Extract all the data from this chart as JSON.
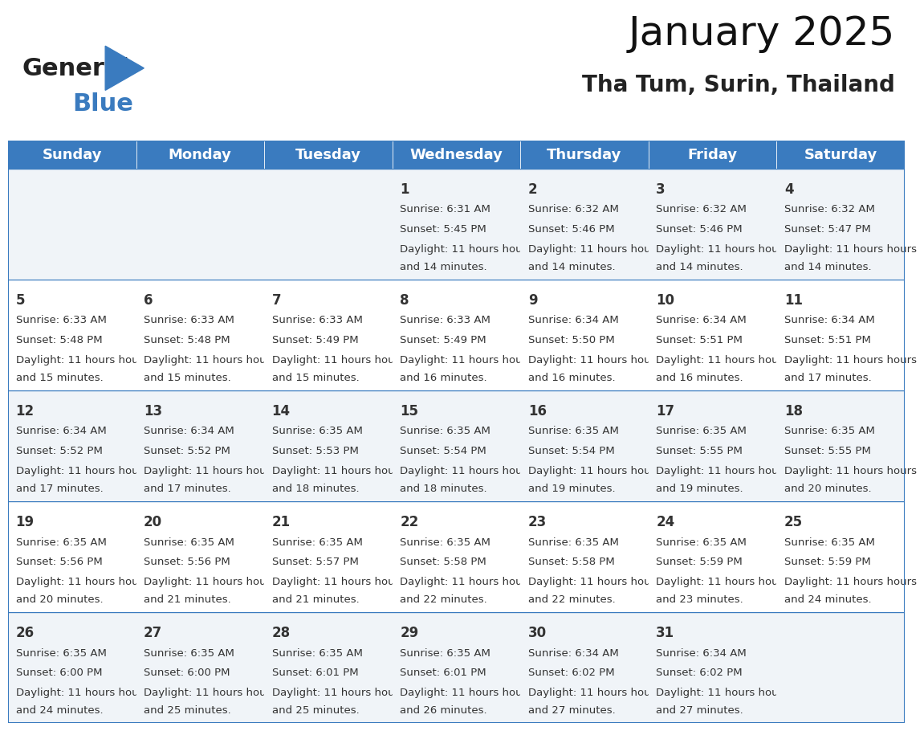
{
  "title": "January 2025",
  "subtitle": "Tha Tum, Surin, Thailand",
  "header_bg_color": "#3a7bbf",
  "header_text_color": "#ffffff",
  "cell_bg_even": "#f0f4f8",
  "cell_bg_odd": "#ffffff",
  "day_names": [
    "Sunday",
    "Monday",
    "Tuesday",
    "Wednesday",
    "Thursday",
    "Friday",
    "Saturday"
  ],
  "days": [
    {
      "date": 1,
      "col": 3,
      "row": 0,
      "sunrise": "6:31 AM",
      "sunset": "5:45 PM",
      "daylight": "11 hours and 14 minutes."
    },
    {
      "date": 2,
      "col": 4,
      "row": 0,
      "sunrise": "6:32 AM",
      "sunset": "5:46 PM",
      "daylight": "11 hours and 14 minutes."
    },
    {
      "date": 3,
      "col": 5,
      "row": 0,
      "sunrise": "6:32 AM",
      "sunset": "5:46 PM",
      "daylight": "11 hours and 14 minutes."
    },
    {
      "date": 4,
      "col": 6,
      "row": 0,
      "sunrise": "6:32 AM",
      "sunset": "5:47 PM",
      "daylight": "11 hours and 14 minutes."
    },
    {
      "date": 5,
      "col": 0,
      "row": 1,
      "sunrise": "6:33 AM",
      "sunset": "5:48 PM",
      "daylight": "11 hours and 15 minutes."
    },
    {
      "date": 6,
      "col": 1,
      "row": 1,
      "sunrise": "6:33 AM",
      "sunset": "5:48 PM",
      "daylight": "11 hours and 15 minutes."
    },
    {
      "date": 7,
      "col": 2,
      "row": 1,
      "sunrise": "6:33 AM",
      "sunset": "5:49 PM",
      "daylight": "11 hours and 15 minutes."
    },
    {
      "date": 8,
      "col": 3,
      "row": 1,
      "sunrise": "6:33 AM",
      "sunset": "5:49 PM",
      "daylight": "11 hours and 16 minutes."
    },
    {
      "date": 9,
      "col": 4,
      "row": 1,
      "sunrise": "6:34 AM",
      "sunset": "5:50 PM",
      "daylight": "11 hours and 16 minutes."
    },
    {
      "date": 10,
      "col": 5,
      "row": 1,
      "sunrise": "6:34 AM",
      "sunset": "5:51 PM",
      "daylight": "11 hours and 16 minutes."
    },
    {
      "date": 11,
      "col": 6,
      "row": 1,
      "sunrise": "6:34 AM",
      "sunset": "5:51 PM",
      "daylight": "11 hours and 17 minutes."
    },
    {
      "date": 12,
      "col": 0,
      "row": 2,
      "sunrise": "6:34 AM",
      "sunset": "5:52 PM",
      "daylight": "11 hours and 17 minutes."
    },
    {
      "date": 13,
      "col": 1,
      "row": 2,
      "sunrise": "6:34 AM",
      "sunset": "5:52 PM",
      "daylight": "11 hours and 17 minutes."
    },
    {
      "date": 14,
      "col": 2,
      "row": 2,
      "sunrise": "6:35 AM",
      "sunset": "5:53 PM",
      "daylight": "11 hours and 18 minutes."
    },
    {
      "date": 15,
      "col": 3,
      "row": 2,
      "sunrise": "6:35 AM",
      "sunset": "5:54 PM",
      "daylight": "11 hours and 18 minutes."
    },
    {
      "date": 16,
      "col": 4,
      "row": 2,
      "sunrise": "6:35 AM",
      "sunset": "5:54 PM",
      "daylight": "11 hours and 19 minutes."
    },
    {
      "date": 17,
      "col": 5,
      "row": 2,
      "sunrise": "6:35 AM",
      "sunset": "5:55 PM",
      "daylight": "11 hours and 19 minutes."
    },
    {
      "date": 18,
      "col": 6,
      "row": 2,
      "sunrise": "6:35 AM",
      "sunset": "5:55 PM",
      "daylight": "11 hours and 20 minutes."
    },
    {
      "date": 19,
      "col": 0,
      "row": 3,
      "sunrise": "6:35 AM",
      "sunset": "5:56 PM",
      "daylight": "11 hours and 20 minutes."
    },
    {
      "date": 20,
      "col": 1,
      "row": 3,
      "sunrise": "6:35 AM",
      "sunset": "5:56 PM",
      "daylight": "11 hours and 21 minutes."
    },
    {
      "date": 21,
      "col": 2,
      "row": 3,
      "sunrise": "6:35 AM",
      "sunset": "5:57 PM",
      "daylight": "11 hours and 21 minutes."
    },
    {
      "date": 22,
      "col": 3,
      "row": 3,
      "sunrise": "6:35 AM",
      "sunset": "5:58 PM",
      "daylight": "11 hours and 22 minutes."
    },
    {
      "date": 23,
      "col": 4,
      "row": 3,
      "sunrise": "6:35 AM",
      "sunset": "5:58 PM",
      "daylight": "11 hours and 22 minutes."
    },
    {
      "date": 24,
      "col": 5,
      "row": 3,
      "sunrise": "6:35 AM",
      "sunset": "5:59 PM",
      "daylight": "11 hours and 23 minutes."
    },
    {
      "date": 25,
      "col": 6,
      "row": 3,
      "sunrise": "6:35 AM",
      "sunset": "5:59 PM",
      "daylight": "11 hours and 24 minutes."
    },
    {
      "date": 26,
      "col": 0,
      "row": 4,
      "sunrise": "6:35 AM",
      "sunset": "6:00 PM",
      "daylight": "11 hours and 24 minutes."
    },
    {
      "date": 27,
      "col": 1,
      "row": 4,
      "sunrise": "6:35 AM",
      "sunset": "6:00 PM",
      "daylight": "11 hours and 25 minutes."
    },
    {
      "date": 28,
      "col": 2,
      "row": 4,
      "sunrise": "6:35 AM",
      "sunset": "6:01 PM",
      "daylight": "11 hours and 25 minutes."
    },
    {
      "date": 29,
      "col": 3,
      "row": 4,
      "sunrise": "6:35 AM",
      "sunset": "6:01 PM",
      "daylight": "11 hours and 26 minutes."
    },
    {
      "date": 30,
      "col": 4,
      "row": 4,
      "sunrise": "6:34 AM",
      "sunset": "6:02 PM",
      "daylight": "11 hours and 27 minutes."
    },
    {
      "date": 31,
      "col": 5,
      "row": 4,
      "sunrise": "6:34 AM",
      "sunset": "6:02 PM",
      "daylight": "11 hours and 27 minutes."
    }
  ],
  "num_rows": 5,
  "logo_text1": "General",
  "logo_text2": "Blue",
  "logo_triangle_color": "#3a7bbf",
  "title_fontsize": 36,
  "subtitle_fontsize": 20,
  "header_fontsize": 13,
  "date_fontsize": 12,
  "cell_fontsize": 9.5,
  "day_text_color": "#333333",
  "border_color": "#3a7bbf"
}
